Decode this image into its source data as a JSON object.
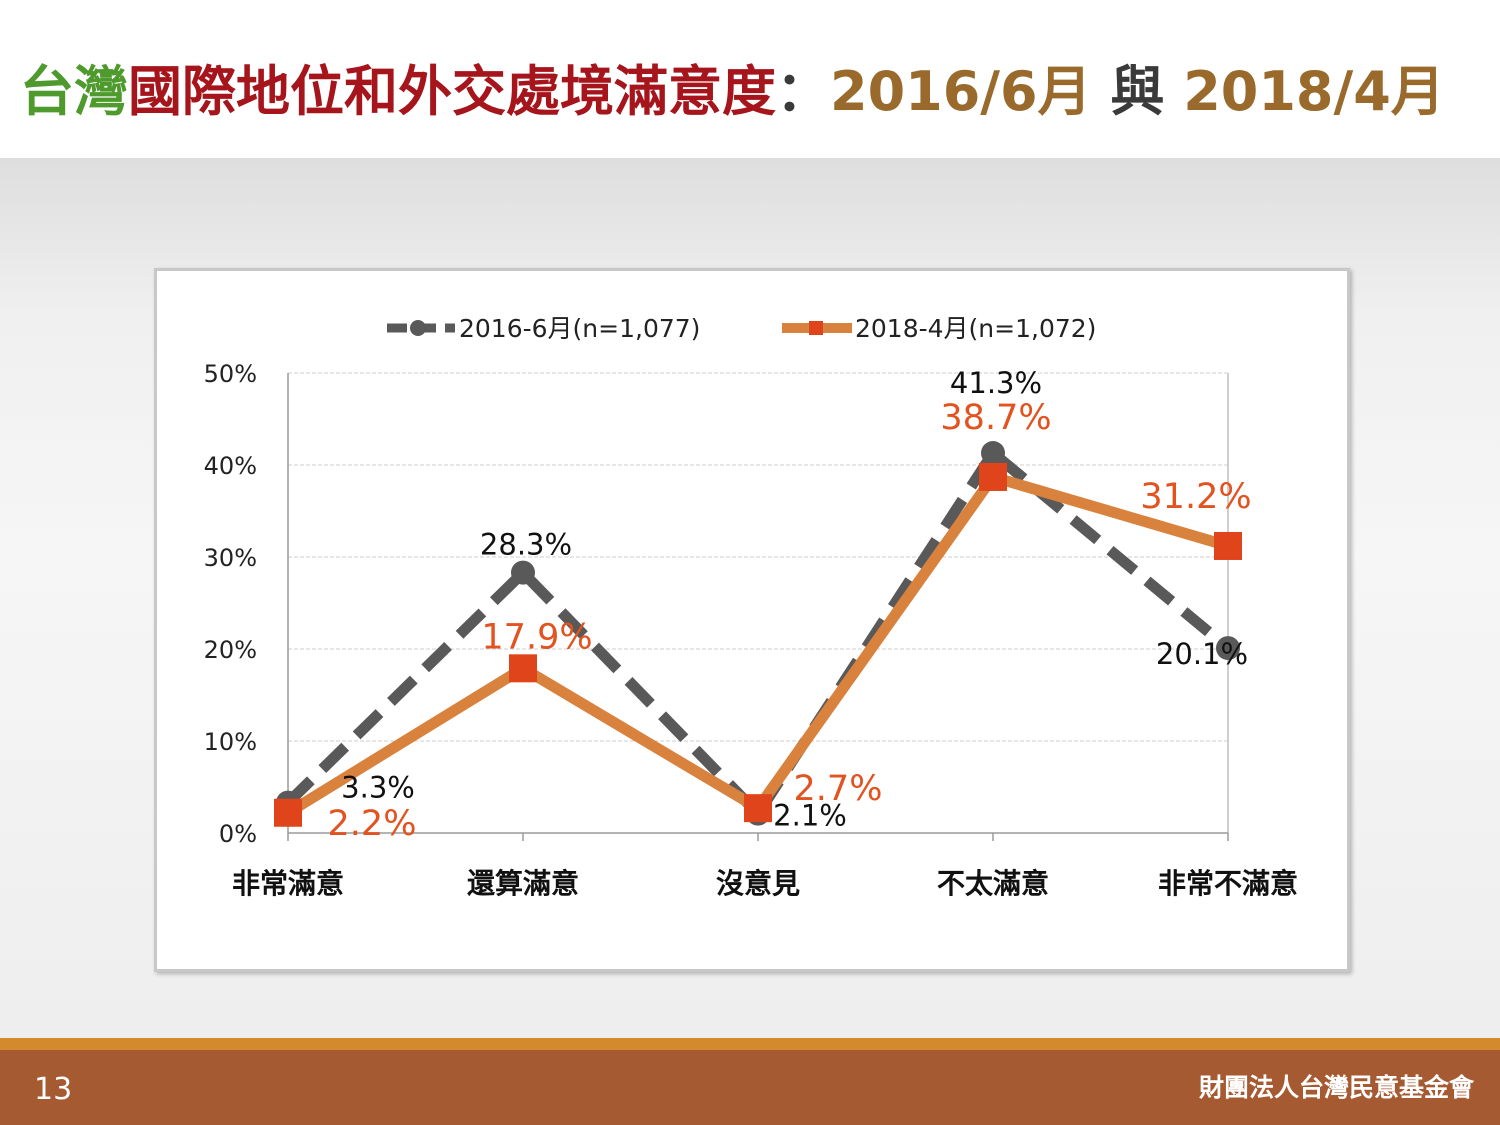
{
  "title": {
    "part1": "台灣",
    "part2": "國際地位和外交處境滿意度",
    "part3": "：",
    "part4": "2016/6月",
    "part5": " 與 ",
    "part6": "2018/4月"
  },
  "colors": {
    "title_green": "#4e9a2c",
    "title_red": "#a5151b",
    "title_gold": "#9a6a2c",
    "title_dark": "#3a3a3a",
    "series_2016": "#595959",
    "series_2018_line": "#d9823e",
    "series_2018_marker": "#e0441a",
    "label_2018": "#e2531f",
    "footer": "#a65a32",
    "footer_stripe": "#d38a2c"
  },
  "chart_data": {
    "type": "line",
    "categories": [
      "非常滿意",
      "還算滿意",
      "沒意見",
      "不太滿意",
      "非常不滿意"
    ],
    "series": [
      {
        "name": "2016-6月(n=1,077)",
        "values": [
          3.3,
          28.3,
          2.1,
          41.3,
          20.1
        ],
        "labels": [
          "3.3%",
          "28.3%",
          "2.1%",
          "41.3%",
          "20.1%"
        ],
        "style": "dashed",
        "marker": "circle"
      },
      {
        "name": "2018-4月(n=1,072)",
        "values": [
          2.2,
          17.9,
          2.7,
          38.7,
          31.2
        ],
        "labels": [
          "2.2%",
          "17.9%",
          "2.7%",
          "38.7%",
          "31.2%"
        ],
        "style": "solid",
        "marker": "square"
      }
    ],
    "y_ticks": [
      "0%",
      "10%",
      "20%",
      "30%",
      "40%",
      "50%"
    ],
    "ylim": [
      0,
      50
    ],
    "grid": true,
    "legend": "top"
  },
  "footer": {
    "page_number": "13",
    "organization": "財團法人台灣民意基金會"
  }
}
